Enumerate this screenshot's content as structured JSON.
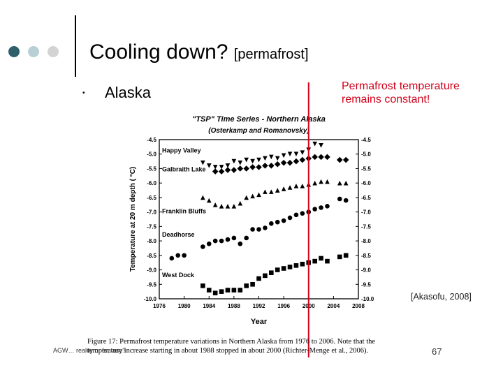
{
  "slide": {
    "title": "Cooling down?",
    "title_sub": "[permafrost]",
    "bullet_marker": "•",
    "bullet_text": "Alaska",
    "note_line1": "Permafrost temperature",
    "note_line2": "remains constant!",
    "citation": "[Akasofu, 2008]",
    "footer_left": "AGW…  reality or fantasy?",
    "page_number": "67",
    "caption_line1": "Figure 17:  Permafrost temperature variations in Northern Alaska from 1976 to 2006. Note that the",
    "caption_line2": "temperature increase starting in about 1988 stopped in about 2000 (Richter-Menge et al., 2006).",
    "colors": {
      "accent_dots": [
        "#2f5f6a",
        "#b8d0d4",
        "#d3d3d3"
      ],
      "note": "#d0021b",
      "marker_line": "#d0021b"
    }
  },
  "chart_data": {
    "type": "scatter",
    "title": "\"TSP\" Time Series - Northern Alaska",
    "subtitle": "(Osterkamp and Romanovsky)",
    "xlabel": "Year",
    "ylabel": "Temperature at 20 m depth ( °C)",
    "xlim": [
      1976,
      2008
    ],
    "ylim": [
      -10.0,
      -4.5
    ],
    "x_ticks": [
      1976,
      1980,
      1984,
      1988,
      1992,
      1996,
      2000,
      2004,
      2008
    ],
    "y_ticks": [
      -4.5,
      -5.0,
      -5.5,
      -6.0,
      -6.5,
      -7.0,
      -7.5,
      -8.0,
      -8.5,
      -9.0,
      -9.5,
      -10.0
    ],
    "y_ticks_right": [
      -4.5,
      -5.0,
      -5.5,
      -6.0,
      -6.5,
      -7.0,
      -7.5,
      -8.0,
      -8.5,
      -9.0,
      -9.5,
      -10.0
    ],
    "y_tick_labels": [
      "-4.5",
      "-5.0",
      "-5.5",
      "-6.0",
      "-6.5",
      "-7.0",
      "-7.5",
      "-8.0",
      "-8.5",
      "-9.0",
      "-9.5",
      "-10.0"
    ],
    "vertical_marker_year": 2000,
    "series": [
      {
        "name": "Happy Valley",
        "marker": "triangle-down",
        "points": [
          [
            1983,
            -5.3
          ],
          [
            1984,
            -5.4
          ],
          [
            1985,
            -5.45
          ],
          [
            1986,
            -5.45
          ],
          [
            1987,
            -5.4
          ],
          [
            1988,
            -5.25
          ],
          [
            1989,
            -5.3
          ],
          [
            1990,
            -5.2
          ],
          [
            1991,
            -5.25
          ],
          [
            1992,
            -5.2
          ],
          [
            1993,
            -5.15
          ],
          [
            1994,
            -5.1
          ],
          [
            1995,
            -5.15
          ],
          [
            1996,
            -5.05
          ],
          [
            1997,
            -5.0
          ],
          [
            1998,
            -5.0
          ],
          [
            1999,
            -4.95
          ],
          [
            2000,
            -4.85
          ],
          [
            2001,
            -4.65
          ],
          [
            2002,
            -4.7
          ]
        ]
      },
      {
        "name": "Galbraith Lake",
        "marker": "diamond",
        "points": [
          [
            1985,
            -5.6
          ],
          [
            1986,
            -5.6
          ],
          [
            1987,
            -5.55
          ],
          [
            1988,
            -5.55
          ],
          [
            1989,
            -5.5
          ],
          [
            1990,
            -5.5
          ],
          [
            1991,
            -5.45
          ],
          [
            1992,
            -5.45
          ],
          [
            1993,
            -5.4
          ],
          [
            1994,
            -5.4
          ],
          [
            1995,
            -5.35
          ],
          [
            1996,
            -5.3
          ],
          [
            1997,
            -5.3
          ],
          [
            1998,
            -5.25
          ],
          [
            1999,
            -5.2
          ],
          [
            2000,
            -5.15
          ],
          [
            2001,
            -5.1
          ],
          [
            2002,
            -5.1
          ],
          [
            2003,
            -5.1
          ],
          [
            2005,
            -5.2
          ],
          [
            2006,
            -5.2
          ]
        ]
      },
      {
        "name": "Franklin Bluffs",
        "marker": "triangle-up",
        "points": [
          [
            1983,
            -6.5
          ],
          [
            1984,
            -6.6
          ],
          [
            1985,
            -6.75
          ],
          [
            1986,
            -6.8
          ],
          [
            1987,
            -6.8
          ],
          [
            1988,
            -6.8
          ],
          [
            1989,
            -6.7
          ],
          [
            1990,
            -6.5
          ],
          [
            1991,
            -6.45
          ],
          [
            1992,
            -6.4
          ],
          [
            1993,
            -6.3
          ],
          [
            1994,
            -6.3
          ],
          [
            1995,
            -6.25
          ],
          [
            1996,
            -6.2
          ],
          [
            1997,
            -6.15
          ],
          [
            1998,
            -6.1
          ],
          [
            1999,
            -6.1
          ],
          [
            2000,
            -6.05
          ],
          [
            2001,
            -6.0
          ],
          [
            2002,
            -5.95
          ],
          [
            2003,
            -5.95
          ],
          [
            2005,
            -6.0
          ],
          [
            2006,
            -6.0
          ]
        ]
      },
      {
        "name": "Deadhorse",
        "marker": "circle",
        "points": [
          [
            1978,
            -8.6
          ],
          [
            1979,
            -8.5
          ],
          [
            1980,
            -8.5
          ],
          [
            1983,
            -8.2
          ],
          [
            1984,
            -8.1
          ],
          [
            1985,
            -8.0
          ],
          [
            1986,
            -8.0
          ],
          [
            1987,
            -7.95
          ],
          [
            1988,
            -7.9
          ],
          [
            1989,
            -8.1
          ],
          [
            1990,
            -7.9
          ],
          [
            1991,
            -7.6
          ],
          [
            1992,
            -7.6
          ],
          [
            1993,
            -7.55
          ],
          [
            1994,
            -7.4
          ],
          [
            1995,
            -7.35
          ],
          [
            1996,
            -7.3
          ],
          [
            1997,
            -7.2
          ],
          [
            1998,
            -7.1
          ],
          [
            1999,
            -7.05
          ],
          [
            2000,
            -7.0
          ],
          [
            2001,
            -6.9
          ],
          [
            2002,
            -6.85
          ],
          [
            2003,
            -6.8
          ],
          [
            2005,
            -6.55
          ],
          [
            2006,
            -6.6
          ]
        ]
      },
      {
        "name": "West Dock",
        "marker": "square",
        "points": [
          [
            1983,
            -9.55
          ],
          [
            1984,
            -9.7
          ],
          [
            1985,
            -9.8
          ],
          [
            1986,
            -9.75
          ],
          [
            1987,
            -9.7
          ],
          [
            1988,
            -9.7
          ],
          [
            1989,
            -9.7
          ],
          [
            1990,
            -9.55
          ],
          [
            1991,
            -9.5
          ],
          [
            1992,
            -9.3
          ],
          [
            1993,
            -9.2
          ],
          [
            1994,
            -9.1
          ],
          [
            1995,
            -9.0
          ],
          [
            1996,
            -8.95
          ],
          [
            1997,
            -8.9
          ],
          [
            1998,
            -8.85
          ],
          [
            1999,
            -8.8
          ],
          [
            2000,
            -8.75
          ],
          [
            2001,
            -8.7
          ],
          [
            2002,
            -8.6
          ],
          [
            2003,
            -8.7
          ],
          [
            2005,
            -8.55
          ],
          [
            2006,
            -8.5
          ]
        ]
      }
    ]
  }
}
